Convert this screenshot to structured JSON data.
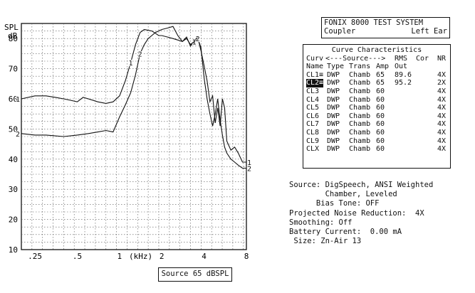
{
  "chart_data": {
    "type": "line",
    "ylabel": "SPL",
    "yunit": "dB",
    "xunit": "(kHz)",
    "ylim": [
      10,
      85
    ],
    "xlim_khz": [
      0.2,
      8
    ],
    "x_scale": "log",
    "grid": true,
    "y_ticks": [
      "80",
      "70",
      "60",
      "50",
      "40",
      "30",
      "20",
      "10"
    ],
    "x_ticks": [
      {
        "v": 0.25,
        "label": ".25"
      },
      {
        "v": 0.5,
        "label": ".5"
      },
      {
        "v": 1,
        "label": "1"
      },
      {
        "v": 2,
        "label": "2"
      },
      {
        "v": 4,
        "label": "4"
      },
      {
        "v": 8,
        "label": "8"
      }
    ],
    "series": [
      {
        "name": "1",
        "points": [
          [
            0.2,
            60
          ],
          [
            0.25,
            61
          ],
          [
            0.3,
            61
          ],
          [
            0.35,
            60.5
          ],
          [
            0.4,
            60
          ],
          [
            0.45,
            59.5
          ],
          [
            0.5,
            59
          ],
          [
            0.55,
            60.5
          ],
          [
            0.6,
            60
          ],
          [
            0.7,
            59
          ],
          [
            0.8,
            58.5
          ],
          [
            0.9,
            59
          ],
          [
            1.0,
            61
          ],
          [
            1.1,
            66
          ],
          [
            1.2,
            72
          ],
          [
            1.3,
            78
          ],
          [
            1.4,
            82
          ],
          [
            1.5,
            83
          ],
          [
            1.7,
            82.5
          ],
          [
            1.9,
            81
          ],
          [
            2.0,
            81
          ],
          [
            2.2,
            80.5
          ],
          [
            2.4,
            80
          ],
          [
            2.6,
            79.5
          ],
          [
            2.8,
            79
          ],
          [
            3.0,
            80.5
          ],
          [
            3.2,
            77.5
          ],
          [
            3.4,
            79
          ],
          [
            3.6,
            80.5
          ],
          [
            3.8,
            76
          ],
          [
            4.0,
            71
          ],
          [
            4.2,
            66
          ],
          [
            4.4,
            59
          ],
          [
            4.6,
            61
          ],
          [
            4.8,
            52
          ],
          [
            5.0,
            57
          ],
          [
            5.2,
            51
          ],
          [
            5.4,
            60
          ],
          [
            5.6,
            57
          ],
          [
            5.8,
            46
          ],
          [
            6.2,
            43
          ],
          [
            6.6,
            44
          ],
          [
            7.0,
            42
          ],
          [
            7.5,
            39
          ],
          [
            8.0,
            39
          ]
        ]
      },
      {
        "name": "2",
        "points": [
          [
            0.2,
            48.5
          ],
          [
            0.25,
            48
          ],
          [
            0.3,
            48
          ],
          [
            0.4,
            47.5
          ],
          [
            0.5,
            48
          ],
          [
            0.6,
            48.5
          ],
          [
            0.7,
            49
          ],
          [
            0.8,
            49.5
          ],
          [
            0.9,
            49
          ],
          [
            1.0,
            54
          ],
          [
            1.1,
            58
          ],
          [
            1.2,
            62
          ],
          [
            1.3,
            68
          ],
          [
            1.4,
            75
          ],
          [
            1.5,
            78
          ],
          [
            1.6,
            80
          ],
          [
            1.8,
            82
          ],
          [
            2.0,
            83
          ],
          [
            2.2,
            83.5
          ],
          [
            2.4,
            84
          ],
          [
            2.6,
            81
          ],
          [
            2.8,
            79
          ],
          [
            3.0,
            80
          ],
          [
            3.2,
            78
          ],
          [
            3.4,
            79
          ],
          [
            3.6,
            80
          ],
          [
            3.8,
            77
          ],
          [
            4.0,
            67
          ],
          [
            4.2,
            60
          ],
          [
            4.4,
            55
          ],
          [
            4.6,
            51
          ],
          [
            4.8,
            55
          ],
          [
            5.0,
            60
          ],
          [
            5.2,
            53
          ],
          [
            5.4,
            48
          ],
          [
            5.6,
            44
          ],
          [
            5.8,
            42
          ],
          [
            6.2,
            40
          ],
          [
            6.6,
            39
          ],
          [
            7.0,
            38
          ],
          [
            7.5,
            37
          ],
          [
            8.0,
            37
          ]
        ]
      }
    ]
  },
  "header": {
    "line1": "FONIX 8000 TEST SYSTEM",
    "coupler": "Coupler",
    "ear": "Left Ear"
  },
  "curves": {
    "title": "Curve Characteristics",
    "h1": {
      "curv": "Curv",
      "source": "<---Source--->",
      "rms": "RMS",
      "cor": "Cor",
      "nr": "NR"
    },
    "h2": {
      "name": "Name",
      "type": "Type",
      "trans": "Trans",
      "amp": "Amp",
      "out": "Out"
    },
    "rows": [
      {
        "name": "CL1≡",
        "type": "DWP",
        "trans": "Chamb",
        "amp": "65",
        "rms": "89.6",
        "nr": "4X"
      },
      {
        "name": "CL2≡",
        "type": "DWP",
        "trans": "Chamb",
        "amp": "65",
        "rms": "95.2",
        "nr": "2X"
      },
      {
        "name": "CL3",
        "type": "DWP",
        "trans": "Chamb",
        "amp": "60",
        "rms": "",
        "nr": "4X"
      },
      {
        "name": "CL4",
        "type": "DWP",
        "trans": "Chamb",
        "amp": "60",
        "rms": "",
        "nr": "4X"
      },
      {
        "name": "CL5",
        "type": "DWP",
        "trans": "Chamb",
        "amp": "60",
        "rms": "",
        "nr": "4X"
      },
      {
        "name": "CL6",
        "type": "DWP",
        "trans": "Chamb",
        "amp": "60",
        "rms": "",
        "nr": "4X"
      },
      {
        "name": "CL7",
        "type": "DWP",
        "trans": "Chamb",
        "amp": "60",
        "rms": "",
        "nr": "4X"
      },
      {
        "name": "CL8",
        "type": "DWP",
        "trans": "Chamb",
        "amp": "60",
        "rms": "",
        "nr": "4X"
      },
      {
        "name": "CL9",
        "type": "DWP",
        "trans": "Chamb",
        "amp": "60",
        "rms": "",
        "nr": "4X"
      },
      {
        "name": "CLX",
        "type": "DWP",
        "trans": "Chamb",
        "amp": "60",
        "rms": "",
        "nr": "4X"
      }
    ]
  },
  "info": {
    "source": "Source: DigSpeech, ANSI Weighted",
    "source2": "        Chamber, Leveled",
    "bias": "      Bias Tone: OFF",
    "pnr": "Projected Noise Reduction:  4X",
    "smoothing": "Smoothing: Off",
    "battery": "Battery Current:  0.00 mA",
    "size": " Size: Zn-Air 13"
  },
  "source_box": "Source  65 dBSPL"
}
